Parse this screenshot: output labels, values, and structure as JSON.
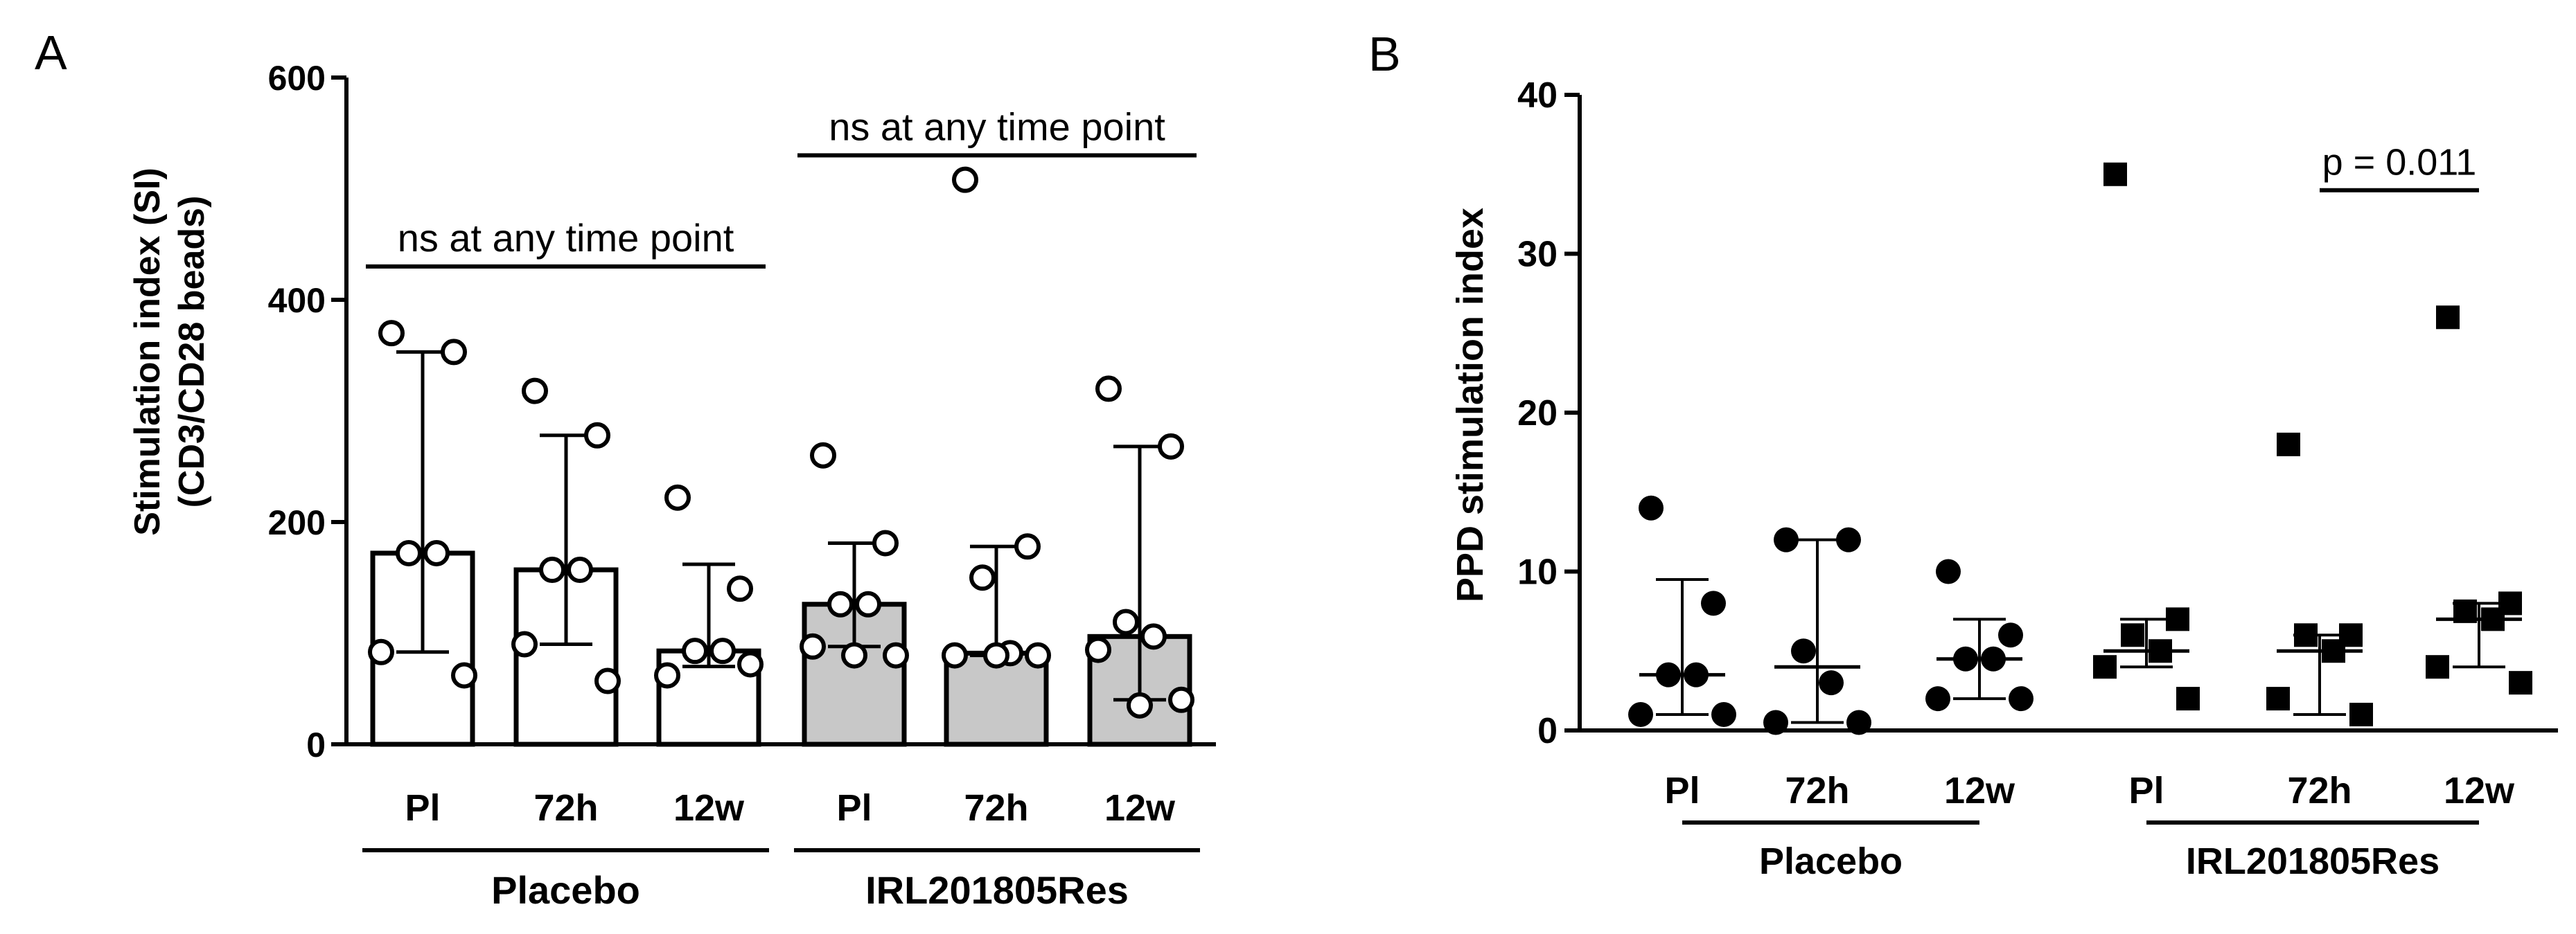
{
  "panels": {
    "a": {
      "letter": "A"
    },
    "b": {
      "letter": "B"
    }
  },
  "chart_data": [
    {
      "type": "bar",
      "ylabel_line1": "Stimulation index (SI)",
      "ylabel_line2": "(CD3/CD28 beads)",
      "ylim": [
        0,
        600
      ],
      "yticks": [
        0,
        200,
        400,
        600
      ],
      "categories": [
        "Pl",
        "72h",
        "12w",
        "Pl",
        "72h",
        "12w"
      ],
      "groups": [
        {
          "name": "Placebo",
          "span": [
            0,
            2
          ]
        },
        {
          "name": "IRL201805Res",
          "span": [
            3,
            5
          ]
        }
      ],
      "bar_colors": [
        "#ffffff",
        "#ffffff",
        "#ffffff",
        "#c8c8c8",
        "#c8c8c8",
        "#c8c8c8"
      ],
      "medians": [
        172,
        157,
        84,
        126,
        82,
        97
      ],
      "error_low": [
        83,
        90,
        70,
        88,
        80,
        40
      ],
      "error_high": [
        353,
        278,
        162,
        181,
        178,
        268
      ],
      "points": [
        [
          370,
          353,
          172,
          172,
          83,
          62
        ],
        [
          318,
          278,
          157,
          157,
          90,
          57
        ],
        [
          222,
          140,
          84,
          84,
          62,
          72
        ],
        [
          260,
          181,
          126,
          126,
          88,
          80,
          80
        ],
        [
          508,
          178,
          150,
          82,
          80,
          80,
          80
        ],
        [
          320,
          268,
          110,
          97,
          85,
          40,
          35
        ]
      ],
      "annotations": [
        {
          "text": "ns at any time point",
          "span": [
            0,
            2
          ],
          "y": 430
        },
        {
          "text": "ns at any time point",
          "span": [
            3,
            5
          ],
          "y": 530
        }
      ]
    },
    {
      "type": "scatter",
      "ylabel": "PPD stimulation index",
      "ylim": [
        0,
        40
      ],
      "yticks": [
        0,
        10,
        20,
        30,
        40
      ],
      "categories": [
        "Pl",
        "72h",
        "12w",
        "Pl",
        "72h",
        "12w"
      ],
      "groups": [
        {
          "name": "Placebo",
          "span": [
            0,
            2
          ]
        },
        {
          "name": "IRL201805Res",
          "span": [
            3,
            5
          ]
        }
      ],
      "markers": [
        "circle",
        "circle",
        "circle",
        "square",
        "square",
        "square"
      ],
      "medians": [
        3.5,
        4,
        4.5,
        5,
        5,
        7
      ],
      "error_low": [
        1,
        0.5,
        2,
        4,
        1,
        4
      ],
      "error_high": [
        9.5,
        12,
        7,
        7,
        6,
        8
      ],
      "points": [
        [
          14,
          8,
          3.5,
          3.5,
          1,
          1
        ],
        [
          12,
          12,
          5,
          3,
          0.5,
          0.5
        ],
        [
          10,
          6,
          4.5,
          4.5,
          2,
          2
        ],
        [
          35,
          7,
          6,
          5,
          4,
          2
        ],
        [
          18,
          6,
          6,
          5,
          2,
          1
        ],
        [
          26,
          8,
          7.5,
          7,
          4,
          3
        ]
      ],
      "annotations": [
        {
          "text": "p = 0.011",
          "span": [
            4,
            5
          ],
          "y": 34
        }
      ]
    }
  ]
}
